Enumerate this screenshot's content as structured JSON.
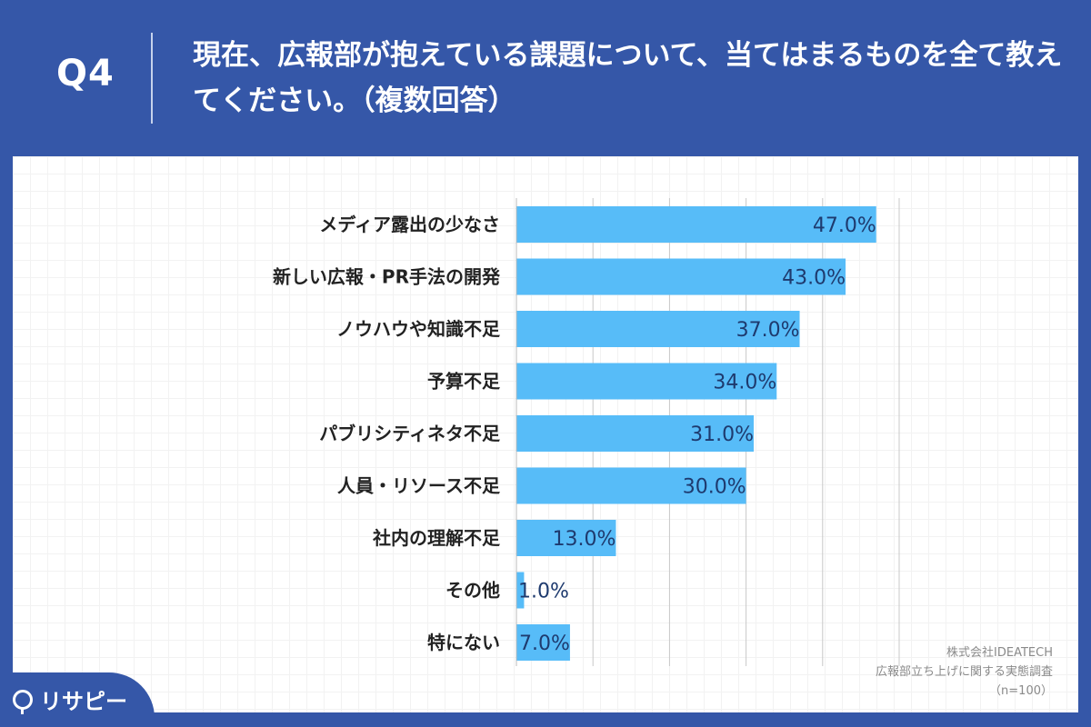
{
  "header": {
    "q_label": "Q4",
    "question": "現在、広報部が抱えている課題について、当てはまるものを全て教えてください。（複数回答）"
  },
  "chart_data": {
    "type": "bar",
    "orientation": "horizontal",
    "categories": [
      "メディア露出の少なさ",
      "新しい広報・PR手法の開発",
      "ノウハウや知識不足",
      "予算不足",
      "パブリシティネタ不足",
      "人員・リソース不足",
      "社内の理解不足",
      "その他",
      "特にない"
    ],
    "values": [
      47.0,
      43.0,
      37.0,
      34.0,
      31.0,
      30.0,
      13.0,
      1.0,
      7.0
    ],
    "value_labels": [
      "47.0%",
      "43.0%",
      "37.0%",
      "34.0%",
      "31.0%",
      "30.0%",
      "13.0%",
      "1.0%",
      "7.0%"
    ],
    "xlim": [
      0,
      50
    ],
    "grid": true,
    "colors": {
      "bar": "#57bcf8",
      "label": "#1e3a6e",
      "grid": "#c8c8c8"
    }
  },
  "source": {
    "line1": "株式会社IDEATECH",
    "line2": "広報部立ち上げに関する実態調査",
    "line3": "（n=100）"
  },
  "brand": {
    "name": "リサピー"
  }
}
